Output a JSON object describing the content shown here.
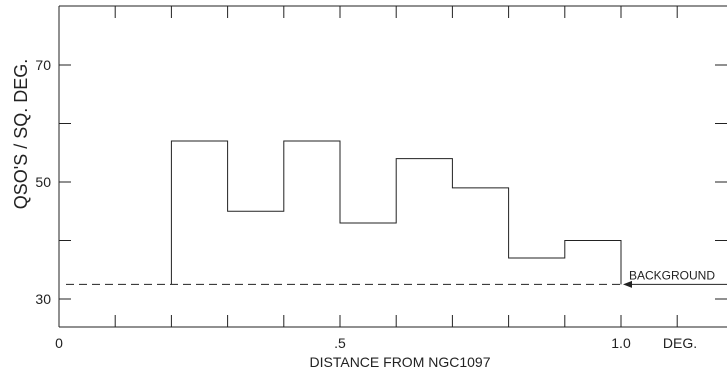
{
  "chart_data": {
    "type": "histogram",
    "xlabel": "DISTANCE FROM NGC1097",
    "ylabel": "QSO'S / SQ. DEG.",
    "xunit": "DEG.",
    "xlim": [
      0,
      1.18
    ],
    "ylim": [
      25,
      80
    ],
    "x_tick_labels": [
      {
        "value": 0,
        "label": "0"
      },
      {
        "value": 0.5,
        "label": ".5"
      },
      {
        "value": 1.0,
        "label": "1.0"
      }
    ],
    "y_tick_labels": [
      {
        "value": 30,
        "label": "30"
      },
      {
        "value": 50,
        "label": "50"
      },
      {
        "value": 70,
        "label": "70"
      }
    ],
    "bins": [
      {
        "x0": 0.2,
        "x1": 0.3,
        "value": 57
      },
      {
        "x0": 0.3,
        "x1": 0.4,
        "value": 45
      },
      {
        "x0": 0.4,
        "x1": 0.5,
        "value": 57
      },
      {
        "x0": 0.5,
        "x1": 0.6,
        "value": 43
      },
      {
        "x0": 0.6,
        "x1": 0.7,
        "value": 54
      },
      {
        "x0": 0.7,
        "x1": 0.8,
        "value": 49
      },
      {
        "x0": 0.8,
        "x1": 0.9,
        "value": 37
      },
      {
        "x0": 0.9,
        "x1": 1.0,
        "value": 40
      }
    ],
    "background": {
      "label": "BACKGROUND",
      "value": 32.5
    },
    "grid": false,
    "frame": "left-top-bottom"
  }
}
